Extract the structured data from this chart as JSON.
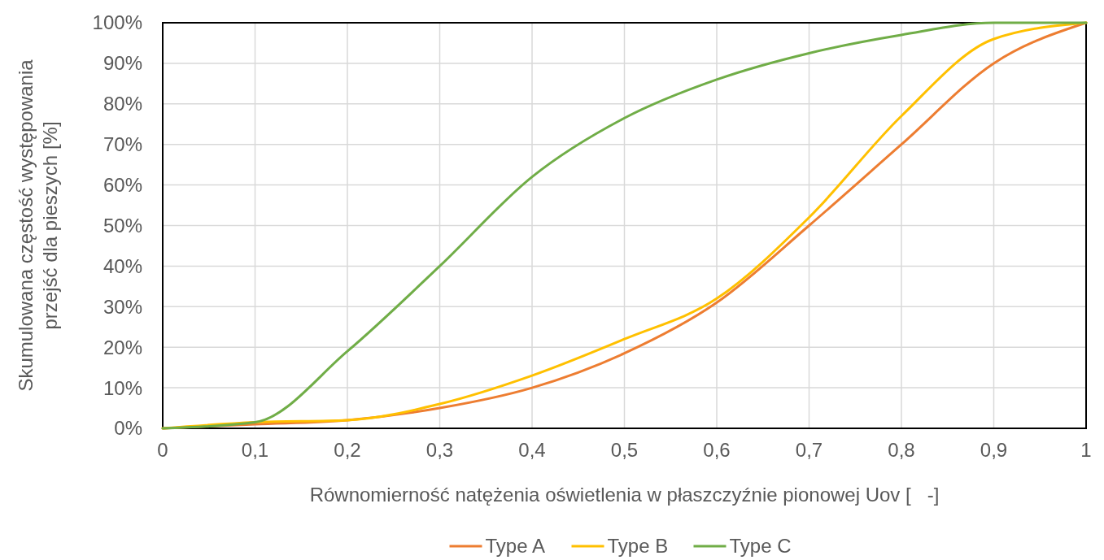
{
  "chart_data": {
    "type": "line",
    "xlabel": "Równomierność natężenia oświetlenia w płaszczyźnie pionowej Uov [   -]",
    "ylabel": "Skumulowana częstość występowania przejść dla pieszych [%]",
    "x": [
      0,
      0.1,
      0.2,
      0.3,
      0.4,
      0.5,
      0.6,
      0.7,
      0.8,
      0.9,
      1
    ],
    "series": [
      {
        "name": "Type A",
        "color": "#ed7d31",
        "values": [
          0,
          1,
          2,
          5,
          10,
          18.5,
          31,
          50,
          70,
          90,
          100
        ]
      },
      {
        "name": "Type B",
        "color": "#ffc000",
        "values": [
          0,
          1.5,
          2,
          6,
          13,
          22,
          32,
          52,
          77,
          96,
          100
        ]
      },
      {
        "name": "Type C",
        "color": "#70ad47",
        "values": [
          0,
          1.5,
          19,
          40,
          62,
          76.5,
          86,
          92.5,
          97,
          100,
          100
        ]
      }
    ],
    "xlim": [
      0,
      1
    ],
    "xticks": [
      0,
      {
        "value": 0.1,
        "label": "0,1"
      },
      {
        "value": 0.2,
        "label": "0,2"
      },
      {
        "value": 0.3,
        "label": "0,3"
      },
      {
        "value": 0.4,
        "label": "0,4"
      },
      {
        "value": 0.5,
        "label": "0,5"
      },
      {
        "value": 0.6,
        "label": "0,6"
      },
      {
        "value": 0.7,
        "label": "0,7"
      },
      {
        "value": 0.8,
        "label": "0,8"
      },
      {
        "value": 0.9,
        "label": "0,9"
      },
      1
    ],
    "ylim": [
      0,
      100
    ],
    "yticks": [
      {
        "value": 0,
        "label": "0%"
      },
      {
        "value": 10,
        "label": "10%"
      },
      {
        "value": 20,
        "label": "20%"
      },
      {
        "value": 30,
        "label": "30%"
      },
      {
        "value": 40,
        "label": "40%"
      },
      {
        "value": 50,
        "label": "50%"
      },
      {
        "value": 60,
        "label": "60%"
      },
      {
        "value": 70,
        "label": "70%"
      },
      {
        "value": 80,
        "label": "80%"
      },
      {
        "value": 90,
        "label": "90%"
      },
      {
        "value": 100,
        "label": "100%"
      }
    ],
    "grid": true,
    "legend": "bottom",
    "marker": "none",
    "line_style": "solid"
  }
}
